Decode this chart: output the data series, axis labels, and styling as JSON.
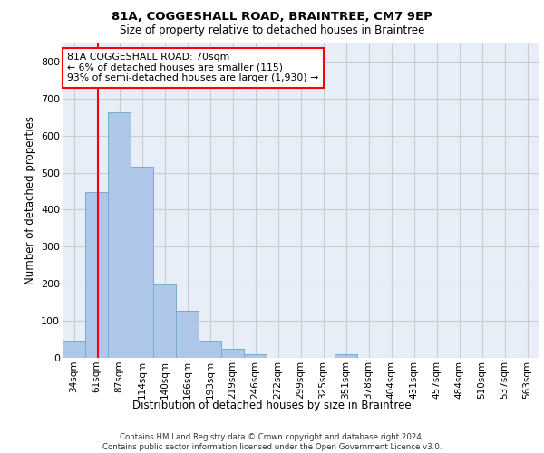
{
  "title_line1": "81A, COGGESHALL ROAD, BRAINTREE, CM7 9EP",
  "title_line2": "Size of property relative to detached houses in Braintree",
  "xlabel": "Distribution of detached houses by size in Braintree",
  "ylabel": "Number of detached properties",
  "categories": [
    "34sqm",
    "61sqm",
    "87sqm",
    "114sqm",
    "140sqm",
    "166sqm",
    "193sqm",
    "219sqm",
    "246sqm",
    "272sqm",
    "299sqm",
    "325sqm",
    "351sqm",
    "378sqm",
    "404sqm",
    "431sqm",
    "457sqm",
    "484sqm",
    "510sqm",
    "537sqm",
    "563sqm"
  ],
  "bar_heights": [
    47,
    447,
    663,
    516,
    197,
    126,
    47,
    24,
    10,
    0,
    0,
    0,
    10,
    0,
    0,
    0,
    0,
    0,
    0,
    0,
    0
  ],
  "bar_color": "#aec6e8",
  "bar_edge_color": "#7aaad0",
  "grid_color": "#cccccc",
  "background_color": "#e8eef8",
  "vline_color": "red",
  "annotation_text": "81A COGGESHALL ROAD: 70sqm\n← 6% of detached houses are smaller (115)\n93% of semi-detached houses are larger (1,930) →",
  "annotation_box_color": "red",
  "annotation_box_facecolor": "white",
  "footnote_line1": "Contains HM Land Registry data © Crown copyright and database right 2024.",
  "footnote_line2": "Contains public sector information licensed under the Open Government Licence v3.0.",
  "ylim": [
    0,
    850
  ],
  "yticks": [
    0,
    100,
    200,
    300,
    400,
    500,
    600,
    700,
    800
  ]
}
